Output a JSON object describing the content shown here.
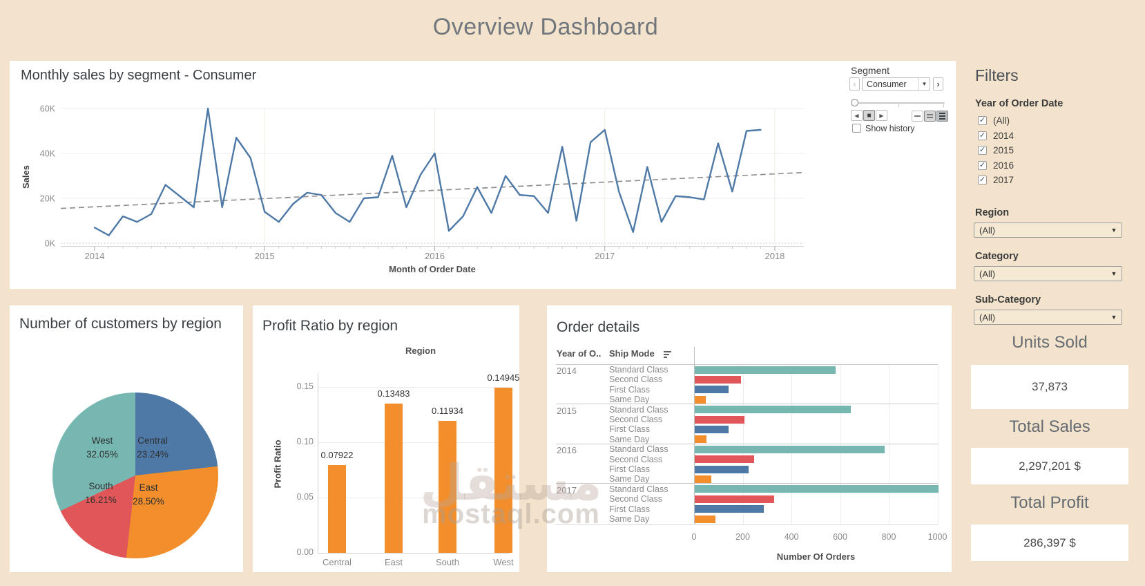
{
  "title": "Overview Dashboard",
  "watermark": {
    "arabic": "مستقل",
    "latin": "mostaql.com"
  },
  "colors": {
    "background": "#f3e3cc",
    "panel": "#ffffff",
    "blue": "#4e79a7",
    "orange": "#f28e2b",
    "red": "#e15759",
    "teal": "#76b7b2",
    "trend_gray": "#8f8f8f"
  },
  "segment_control": {
    "label": "Segment",
    "selected": "Consumer",
    "prev_icon": "‹",
    "next_icon": "›",
    "dropdown_arrow": "▼",
    "play_back_icon": "◀",
    "stop_icon": "■",
    "play_icon": "▶",
    "show_history_label": "Show history",
    "show_history_checked": false
  },
  "filters": {
    "title": "Filters",
    "year_filter": {
      "label": "Year of Order Date",
      "options": [
        {
          "label": "(All)",
          "checked": true
        },
        {
          "label": "2014",
          "checked": true
        },
        {
          "label": "2015",
          "checked": true
        },
        {
          "label": "2016",
          "checked": true
        },
        {
          "label": "2017",
          "checked": true
        }
      ]
    },
    "dropdowns": [
      {
        "label": "Region",
        "value": "(All)"
      },
      {
        "label": "Category",
        "value": "(All)"
      },
      {
        "label": "Sub-Category",
        "value": "(All)"
      }
    ],
    "dropdown_arrow": "▼",
    "check_glyph": "✓"
  },
  "kpis": [
    {
      "label": "Units Sold",
      "value": "37,873"
    },
    {
      "label": "Total Sales",
      "value": "2,297,201 $"
    },
    {
      "label": "Total Profit",
      "value": "286,397 $"
    }
  ],
  "chart_data": [
    {
      "id": "monthly_sales",
      "type": "line",
      "title": "Monthly sales by segment - Consumer",
      "xlabel": "Month of Order Date",
      "ylabel": "Sales",
      "y_ticks": [
        "60K",
        "40K",
        "20K",
        "0K"
      ],
      "x_ticks": [
        "2014",
        "2015",
        "2016",
        "2017",
        "2018"
      ],
      "ylim_k": [
        0,
        60
      ],
      "grid": true,
      "x_months": "Jan 2014 .. Dec 2017 (48 monthly points)",
      "series": [
        {
          "name": "Sales (K$)",
          "color": "#4e79a7",
          "values": [
            7,
            3.5,
            12,
            9.5,
            13,
            26,
            21,
            16,
            60,
            16,
            47,
            38,
            14,
            9.5,
            17.5,
            22.5,
            21.5,
            13.5,
            9.5,
            20,
            20.5,
            39,
            16,
            30.5,
            40,
            5.5,
            12,
            25,
            13.5,
            30,
            21.5,
            21,
            13.5,
            43,
            10,
            45,
            50.5,
            23,
            5,
            34,
            9.5,
            21,
            20.5,
            19.5,
            44.5,
            23,
            50,
            50.5
          ]
        },
        {
          "name": "Trend line",
          "style": "dashed",
          "color": "#8f8f8f",
          "values": [
            15.5,
            31.5
          ]
        }
      ]
    },
    {
      "id": "customers_by_region",
      "type": "pie",
      "title": "Number of customers by region",
      "slices": [
        {
          "label": "Central",
          "pct": 23.24,
          "pct_label": "23.24%",
          "color": "#4e79a7"
        },
        {
          "label": "East",
          "pct": 28.5,
          "pct_label": "28.50%",
          "color": "#f28e2b"
        },
        {
          "label": "South",
          "pct": 16.21,
          "pct_label": "16.21%",
          "color": "#e15759"
        },
        {
          "label": "West",
          "pct": 32.05,
          "pct_label": "32.05%",
          "color": "#76b7b2"
        }
      ],
      "label_positions": [
        {
          "x": 207,
          "y": 206
        },
        {
          "x": 201,
          "y": 274
        },
        {
          "x": 132,
          "y": 272
        },
        {
          "x": 134,
          "y": 206
        }
      ]
    },
    {
      "id": "profit_ratio",
      "type": "bar",
      "title": "Profit Ratio by region",
      "xlabel_top": "Region",
      "ylabel": "Profit Ratio",
      "categories": [
        "Central",
        "East",
        "South",
        "West"
      ],
      "values": [
        0.07922,
        0.13483,
        0.11934,
        0.14945
      ],
      "value_labels": [
        "0.07922",
        "0.13483",
        "0.11934",
        "0.14945"
      ],
      "y_ticks": [
        "0.00",
        "0.05",
        "0.10",
        "0.15"
      ],
      "ylim": [
        0,
        0.155
      ],
      "bar_color": "#f28e2b"
    },
    {
      "id": "order_details",
      "type": "bar-horizontal",
      "title": "Order details",
      "col1_header": "Year of O..",
      "col2_header": "Ship Mode",
      "xlabel": "Number Of Orders",
      "x_ticks": [
        0,
        200,
        400,
        600,
        800,
        1000
      ],
      "xlim": [
        0,
        1000
      ],
      "ship_mode_colors": {
        "Standard Class": "#76b7b2",
        "Second Class": "#e15759",
        "First Class": "#4e79a7",
        "Same Day": "#f28e2b"
      },
      "groups": [
        {
          "year": "2014",
          "rows": [
            [
              "Standard Class",
              580
            ],
            [
              "Second Class",
              190
            ],
            [
              "First Class",
              140
            ],
            [
              "Same Day",
              45
            ]
          ]
        },
        {
          "year": "2015",
          "rows": [
            [
              "Standard Class",
              640
            ],
            [
              "Second Class",
              205
            ],
            [
              "First Class",
              140
            ],
            [
              "Same Day",
              48
            ]
          ]
        },
        {
          "year": "2016",
          "rows": [
            [
              "Standard Class",
              780
            ],
            [
              "Second Class",
              245
            ],
            [
              "First Class",
              220
            ],
            [
              "Same Day",
              67
            ]
          ]
        },
        {
          "year": "2017",
          "rows": [
            [
              "Standard Class",
              1000
            ],
            [
              "Second Class",
              325
            ],
            [
              "First Class",
              285
            ],
            [
              "Same Day",
              85
            ]
          ]
        }
      ]
    }
  ]
}
